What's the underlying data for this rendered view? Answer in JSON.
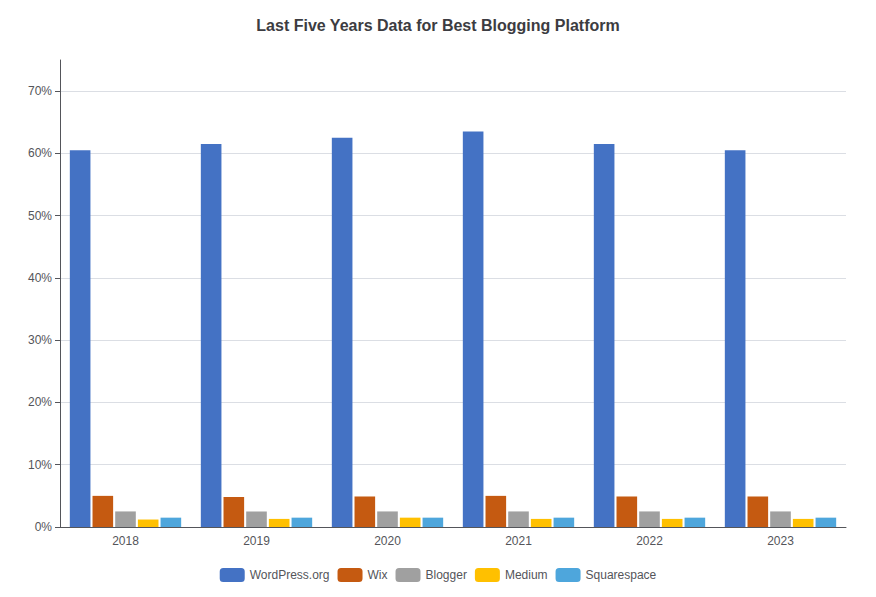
{
  "chart_data": {
    "type": "bar",
    "title": "Last Five Years Data for Best Blogging Platform",
    "categories": [
      "2018",
      "2019",
      "2020",
      "2021",
      "2022",
      "2023"
    ],
    "series": [
      {
        "name": "WordPress.org",
        "color": "#4472c4",
        "values": [
          0.605,
          0.615,
          0.625,
          0.635,
          0.615,
          0.605
        ]
      },
      {
        "name": "Wix",
        "color": "#c55a11",
        "values": [
          0.05,
          0.048,
          0.049,
          0.05,
          0.049,
          0.049
        ]
      },
      {
        "name": "Blogger",
        "color": "#a0a0a0",
        "values": [
          0.025,
          0.025,
          0.025,
          0.025,
          0.025,
          0.025
        ]
      },
      {
        "name": "Medium",
        "color": "#ffc000",
        "values": [
          0.012,
          0.013,
          0.015,
          0.013,
          0.013,
          0.013
        ]
      },
      {
        "name": "Squarespace",
        "color": "#4ea6dc",
        "values": [
          0.015,
          0.015,
          0.015,
          0.015,
          0.015,
          0.015
        ]
      }
    ],
    "ylim": [
      0,
      0.75
    ],
    "yticks": [
      {
        "value": 0.0,
        "label": "0%"
      },
      {
        "value": 0.1,
        "label": "10%"
      },
      {
        "value": 0.2,
        "label": "20%"
      },
      {
        "value": 0.3,
        "label": "30%"
      },
      {
        "value": 0.4,
        "label": "40%"
      },
      {
        "value": 0.5,
        "label": "50%"
      },
      {
        "value": 0.6,
        "label": "60%"
      },
      {
        "value": 0.7,
        "label": "70%"
      }
    ],
    "grid": true,
    "legend": "bottom"
  }
}
